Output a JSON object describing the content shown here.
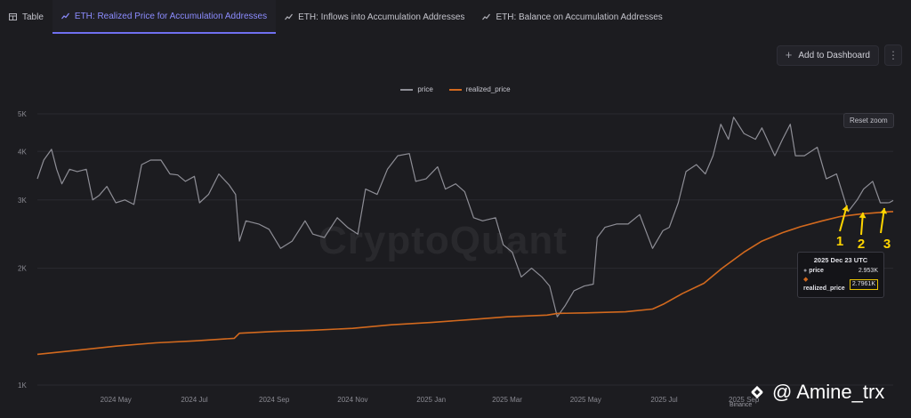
{
  "tabs": [
    {
      "label": "Table",
      "icon": "table-icon",
      "active": false
    },
    {
      "label": "ETH: Realized Price for Accumulation Addresses",
      "icon": "chart-icon",
      "active": true
    },
    {
      "label": "ETH: Inflows into Accumulation Addresses",
      "icon": "chart-icon",
      "active": false
    },
    {
      "label": "ETH: Balance on Accumulation Addresses",
      "icon": "chart-icon",
      "active": false
    }
  ],
  "toolbar": {
    "add_label": "Add to Dashboard",
    "more_icon": "kebab-icon"
  },
  "reset_zoom_label": "Reset zoom",
  "watermark": "CryptoQuant",
  "credit": {
    "handle": "@ Amine_trx",
    "logo": "binance-icon",
    "sub": "Binance"
  },
  "tooltip": {
    "date": "2025 Dec 23 UTC",
    "price_label": "price",
    "price_value": "2.953K",
    "realized_label": "realized_price",
    "realized_value": "2.7961K"
  },
  "annotations": [
    "1",
    "2",
    "3"
  ],
  "colors": {
    "price": "#8e8e96",
    "realized_price": "#d2691e",
    "annotation": "#ffd500",
    "accent": "#6f6ff0"
  },
  "chart_data": {
    "type": "line",
    "y_scale": "log",
    "ylim": [
      1000,
      5000
    ],
    "y_ticks": [
      {
        "v": 1000,
        "label": "1K"
      },
      {
        "v": 2000,
        "label": "2K"
      },
      {
        "v": 3000,
        "label": "3K"
      },
      {
        "v": 4000,
        "label": "4K"
      },
      {
        "v": 5000,
        "label": "5K"
      }
    ],
    "x_range": [
      "2024-03-01",
      "2025-12-26"
    ],
    "x_ticks": [
      {
        "d": "2024-05-01",
        "label": "2024 May"
      },
      {
        "d": "2024-07-01",
        "label": "2024 Jul"
      },
      {
        "d": "2024-09-01",
        "label": "2024 Sep"
      },
      {
        "d": "2024-11-01",
        "label": "2024 Nov"
      },
      {
        "d": "2025-01-01",
        "label": "2025 Jan"
      },
      {
        "d": "2025-03-01",
        "label": "2025 Mar"
      },
      {
        "d": "2025-05-01",
        "label": "2025 May"
      },
      {
        "d": "2025-07-01",
        "label": "2025 Jul"
      },
      {
        "d": "2025-09-01",
        "label": "2025 Sep"
      }
    ],
    "legend": [
      {
        "name": "price"
      },
      {
        "name": "realized_price"
      }
    ],
    "series": [
      {
        "name": "price",
        "points": [
          [
            "2024-03-01",
            3400
          ],
          [
            "2024-03-06",
            3800
          ],
          [
            "2024-03-12",
            4050
          ],
          [
            "2024-03-16",
            3600
          ],
          [
            "2024-03-20",
            3300
          ],
          [
            "2024-03-26",
            3600
          ],
          [
            "2024-04-01",
            3550
          ],
          [
            "2024-04-08",
            3600
          ],
          [
            "2024-04-13",
            3000
          ],
          [
            "2024-04-18",
            3080
          ],
          [
            "2024-04-24",
            3250
          ],
          [
            "2024-05-01",
            2950
          ],
          [
            "2024-05-08",
            3000
          ],
          [
            "2024-05-15",
            2920
          ],
          [
            "2024-05-21",
            3700
          ],
          [
            "2024-05-28",
            3800
          ],
          [
            "2024-06-05",
            3800
          ],
          [
            "2024-06-12",
            3500
          ],
          [
            "2024-06-18",
            3480
          ],
          [
            "2024-06-24",
            3350
          ],
          [
            "2024-07-01",
            3450
          ],
          [
            "2024-07-05",
            2950
          ],
          [
            "2024-07-12",
            3100
          ],
          [
            "2024-07-20",
            3500
          ],
          [
            "2024-07-28",
            3280
          ],
          [
            "2024-08-02",
            3100
          ],
          [
            "2024-08-05",
            2350
          ],
          [
            "2024-08-10",
            2650
          ],
          [
            "2024-08-20",
            2600
          ],
          [
            "2024-08-28",
            2520
          ],
          [
            "2024-09-06",
            2250
          ],
          [
            "2024-09-15",
            2350
          ],
          [
            "2024-09-25",
            2650
          ],
          [
            "2024-10-01",
            2450
          ],
          [
            "2024-10-10",
            2400
          ],
          [
            "2024-10-20",
            2700
          ],
          [
            "2024-10-28",
            2550
          ],
          [
            "2024-11-05",
            2450
          ],
          [
            "2024-11-11",
            3200
          ],
          [
            "2024-11-20",
            3100
          ],
          [
            "2024-11-28",
            3600
          ],
          [
            "2024-12-06",
            3900
          ],
          [
            "2024-12-15",
            3950
          ],
          [
            "2024-12-20",
            3350
          ],
          [
            "2024-12-28",
            3400
          ],
          [
            "2025-01-06",
            3650
          ],
          [
            "2025-01-12",
            3200
          ],
          [
            "2025-01-20",
            3300
          ],
          [
            "2025-01-27",
            3150
          ],
          [
            "2025-02-03",
            2700
          ],
          [
            "2025-02-10",
            2650
          ],
          [
            "2025-02-20",
            2700
          ],
          [
            "2025-02-26",
            2300
          ],
          [
            "2025-03-05",
            2200
          ],
          [
            "2025-03-12",
            1900
          ],
          [
            "2025-03-20",
            2000
          ],
          [
            "2025-03-28",
            1900
          ],
          [
            "2025-04-03",
            1800
          ],
          [
            "2025-04-09",
            1500
          ],
          [
            "2025-04-15",
            1600
          ],
          [
            "2025-04-22",
            1750
          ],
          [
            "2025-04-30",
            1800
          ],
          [
            "2025-05-07",
            1820
          ],
          [
            "2025-05-10",
            2400
          ],
          [
            "2025-05-16",
            2550
          ],
          [
            "2025-05-25",
            2600
          ],
          [
            "2025-06-03",
            2600
          ],
          [
            "2025-06-12",
            2750
          ],
          [
            "2025-06-22",
            2250
          ],
          [
            "2025-06-30",
            2500
          ],
          [
            "2025-07-05",
            2550
          ],
          [
            "2025-07-12",
            2950
          ],
          [
            "2025-07-18",
            3550
          ],
          [
            "2025-07-26",
            3700
          ],
          [
            "2025-08-02",
            3500
          ],
          [
            "2025-08-08",
            3900
          ],
          [
            "2025-08-14",
            4700
          ],
          [
            "2025-08-20",
            4300
          ],
          [
            "2025-08-24",
            4900
          ],
          [
            "2025-09-01",
            4450
          ],
          [
            "2025-09-10",
            4300
          ],
          [
            "2025-09-15",
            4600
          ],
          [
            "2025-09-25",
            3900
          ],
          [
            "2025-10-01",
            4300
          ],
          [
            "2025-10-07",
            4700
          ],
          [
            "2025-10-11",
            3900
          ],
          [
            "2025-10-18",
            3900
          ],
          [
            "2025-10-28",
            4100
          ],
          [
            "2025-11-04",
            3400
          ],
          [
            "2025-11-12",
            3500
          ],
          [
            "2025-11-21",
            2800
          ],
          [
            "2025-11-28",
            3000
          ],
          [
            "2025-12-03",
            3200
          ],
          [
            "2025-12-10",
            3350
          ],
          [
            "2025-12-16",
            2950
          ],
          [
            "2025-12-21",
            2950
          ],
          [
            "2025-12-23",
            2953
          ],
          [
            "2025-12-26",
            2990
          ]
        ]
      },
      {
        "name": "realized_price",
        "points": [
          [
            "2024-03-01",
            1200
          ],
          [
            "2024-04-01",
            1230
          ],
          [
            "2024-05-01",
            1260
          ],
          [
            "2024-06-01",
            1285
          ],
          [
            "2024-07-01",
            1300
          ],
          [
            "2024-08-01",
            1320
          ],
          [
            "2024-08-05",
            1360
          ],
          [
            "2024-09-01",
            1375
          ],
          [
            "2024-10-01",
            1385
          ],
          [
            "2024-11-01",
            1400
          ],
          [
            "2024-12-01",
            1430
          ],
          [
            "2025-01-01",
            1450
          ],
          [
            "2025-02-01",
            1475
          ],
          [
            "2025-03-01",
            1500
          ],
          [
            "2025-04-01",
            1515
          ],
          [
            "2025-04-09",
            1530
          ],
          [
            "2025-05-01",
            1535
          ],
          [
            "2025-06-01",
            1545
          ],
          [
            "2025-06-22",
            1570
          ],
          [
            "2025-07-01",
            1620
          ],
          [
            "2025-07-15",
            1720
          ],
          [
            "2025-08-01",
            1830
          ],
          [
            "2025-08-15",
            2000
          ],
          [
            "2025-09-01",
            2200
          ],
          [
            "2025-09-15",
            2350
          ],
          [
            "2025-10-01",
            2470
          ],
          [
            "2025-10-15",
            2560
          ],
          [
            "2025-11-01",
            2650
          ],
          [
            "2025-11-15",
            2720
          ],
          [
            "2025-12-01",
            2760
          ],
          [
            "2025-12-15",
            2785
          ],
          [
            "2025-12-23",
            2796.1
          ],
          [
            "2025-12-26",
            2800
          ]
        ]
      }
    ]
  }
}
